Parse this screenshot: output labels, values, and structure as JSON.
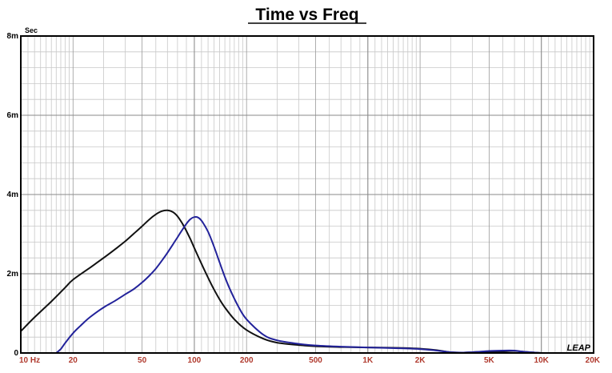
{
  "chart_data": {
    "type": "line",
    "title": "Time vs Freq",
    "ylabel": "Sec",
    "xlabel": "",
    "x_scale": "log",
    "xlim": [
      10,
      20000
    ],
    "ylim": [
      0,
      0.008
    ],
    "grid": true,
    "y_ticks": [
      {
        "value": 0,
        "label": "0"
      },
      {
        "value": 0.002,
        "label": "2m"
      },
      {
        "value": 0.004,
        "label": "4m"
      },
      {
        "value": 0.006,
        "label": "6m"
      },
      {
        "value": 0.008,
        "label": "8m"
      }
    ],
    "x_ticks": [
      {
        "value": 10,
        "label": "10  Hz"
      },
      {
        "value": 20,
        "label": "20"
      },
      {
        "value": 50,
        "label": "50"
      },
      {
        "value": 100,
        "label": "100"
      },
      {
        "value": 200,
        "label": "200"
      },
      {
        "value": 500,
        "label": "500"
      },
      {
        "value": 1000,
        "label": "1K"
      },
      {
        "value": 2000,
        "label": "2K"
      },
      {
        "value": 5000,
        "label": "5K"
      },
      {
        "value": 10000,
        "label": "10K"
      },
      {
        "value": 20000,
        "label": "20K"
      }
    ],
    "series": [
      {
        "color": "#111111",
        "x": [
          10,
          12,
          15,
          18,
          20,
          25,
          30,
          35,
          40,
          45,
          50,
          55,
          60,
          65,
          70,
          75,
          80,
          85,
          90,
          95,
          100,
          110,
          120,
          130,
          140,
          150,
          170,
          200,
          250,
          300,
          400,
          500,
          700,
          1000,
          1500,
          2000,
          2500,
          3000,
          3500,
          4000,
          5000,
          6000,
          7000,
          8000,
          10000
        ],
        "y": [
          0.00055,
          0.0009,
          0.0013,
          0.00165,
          0.00185,
          0.00215,
          0.0024,
          0.00262,
          0.00282,
          0.00302,
          0.0032,
          0.00337,
          0.0035,
          0.00358,
          0.0036,
          0.00356,
          0.00345,
          0.00328,
          0.00308,
          0.00287,
          0.00265,
          0.00225,
          0.0019,
          0.0016,
          0.00135,
          0.00115,
          0.00085,
          0.00058,
          0.00036,
          0.00026,
          0.0002,
          0.00017,
          0.00015,
          0.00014,
          0.00013,
          0.00011,
          7e-05,
          2e-05,
          1e-05,
          2e-05,
          4e-05,
          4e-05,
          5e-05,
          3e-05,
          0.0
        ]
      },
      {
        "color": "#22229a",
        "x": [
          16,
          17,
          18,
          20,
          22,
          25,
          30,
          35,
          40,
          45,
          50,
          55,
          60,
          65,
          70,
          75,
          80,
          85,
          90,
          95,
          100,
          105,
          110,
          120,
          130,
          140,
          150,
          160,
          180,
          200,
          250,
          300,
          400,
          500,
          700,
          1000,
          1500,
          2000,
          2500,
          3000,
          3500,
          4000,
          5000,
          6000,
          7000,
          8000,
          10000
        ],
        "y": [
          0.0,
          0.0001,
          0.00025,
          0.0005,
          0.00068,
          0.0009,
          0.00115,
          0.00132,
          0.00148,
          0.00162,
          0.00178,
          0.00195,
          0.00213,
          0.00233,
          0.00253,
          0.00273,
          0.00292,
          0.0031,
          0.00326,
          0.00338,
          0.00343,
          0.00342,
          0.00334,
          0.00306,
          0.00268,
          0.00228,
          0.00192,
          0.00162,
          0.00116,
          0.00085,
          0.00046,
          0.00032,
          0.00023,
          0.00019,
          0.00016,
          0.00014,
          0.00012,
          0.0001,
          6e-05,
          2e-05,
          1e-05,
          2e-05,
          5e-05,
          6e-05,
          6e-05,
          3e-05,
          0.0
        ]
      }
    ]
  },
  "logo_text": "LEAP"
}
